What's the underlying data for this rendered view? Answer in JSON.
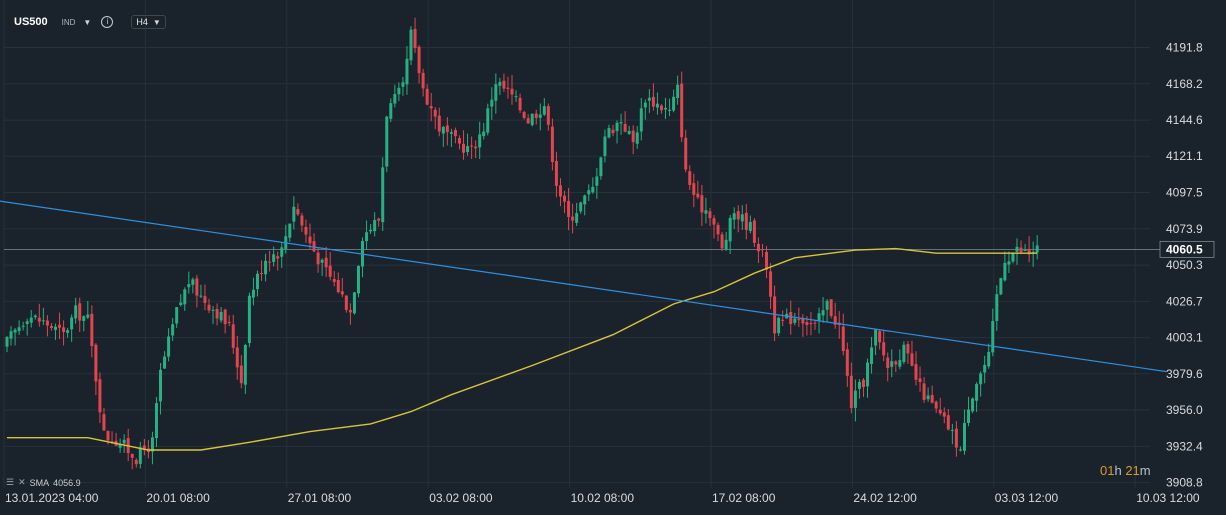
{
  "toolbar": {
    "symbol": "US500",
    "type": "IND",
    "timeframe": "H4",
    "info_icon": "info-icon",
    "dropdown_icon": "chevron-down-icon"
  },
  "indicator_legend": {
    "name": "SMA",
    "value": "4056.9"
  },
  "countdown": {
    "hours": "01",
    "h_unit": "h",
    "minutes": "21",
    "m_unit": "m"
  },
  "colors": {
    "background": "#1a232b",
    "up": "#26b083",
    "down": "#e2454f",
    "sma": "#d6c43a",
    "trendline": "#2f8fe0",
    "current_price_line": "#7c8c99",
    "countdown": "#d79a2e"
  },
  "chart_data": {
    "type": "candlestick",
    "title": "US500",
    "timeframe": "H4",
    "y_axis": {
      "ticks": [
        "4191.8",
        "4168.2",
        "4144.6",
        "4121.1",
        "4097.5",
        "4073.9",
        "4050.3",
        "4026.7",
        "4003.1",
        "3979.6",
        "3956.0",
        "3932.4",
        "3908.8"
      ],
      "ylim": [
        3905,
        4225
      ]
    },
    "x_axis": {
      "ticks": [
        "13.01.2023 04:00",
        "20.01 08:00",
        "27.01 08:00",
        "03.02 08:00",
        "10.02 08:00",
        "17.02 08:00",
        "24.02 12:00",
        "03.03 12:00",
        "10.03 12:00"
      ],
      "tick_bar_index": [
        0,
        35,
        70,
        105,
        140,
        175,
        210,
        245,
        280
      ]
    },
    "current_price": "4060.5",
    "grid": true,
    "close_path": [
      [
        0,
        4000
      ],
      [
        5,
        4018
      ],
      [
        10,
        4012
      ],
      [
        14,
        4005
      ],
      [
        17,
        4020
      ],
      [
        20,
        4015
      ],
      [
        24,
        3940
      ],
      [
        28,
        3935
      ],
      [
        32,
        3925
      ],
      [
        36,
        3935
      ],
      [
        38,
        3980
      ],
      [
        42,
        4020
      ],
      [
        45,
        4040
      ],
      [
        48,
        4030
      ],
      [
        52,
        4020
      ],
      [
        55,
        4010
      ],
      [
        58,
        3975
      ],
      [
        60,
        4030
      ],
      [
        64,
        4055
      ],
      [
        68,
        4060
      ],
      [
        71,
        4090
      ],
      [
        74,
        4070
      ],
      [
        78,
        4050
      ],
      [
        82,
        4035
      ],
      [
        85,
        4020
      ],
      [
        88,
        4070
      ],
      [
        92,
        4080
      ],
      [
        94,
        4150
      ],
      [
        98,
        4165
      ],
      [
        100,
        4200
      ],
      [
        103,
        4165
      ],
      [
        107,
        4140
      ],
      [
        111,
        4130
      ],
      [
        115,
        4125
      ],
      [
        118,
        4140
      ],
      [
        121,
        4170
      ],
      [
        125,
        4160
      ],
      [
        129,
        4145
      ],
      [
        133,
        4155
      ],
      [
        136,
        4105
      ],
      [
        139,
        4080
      ],
      [
        142,
        4090
      ],
      [
        145,
        4100
      ],
      [
        148,
        4135
      ],
      [
        152,
        4145
      ],
      [
        155,
        4130
      ],
      [
        158,
        4160
      ],
      [
        161,
        4155
      ],
      [
        164,
        4150
      ],
      [
        166,
        4165
      ],
      [
        168,
        4110
      ],
      [
        171,
        4090
      ],
      [
        174,
        4085
      ],
      [
        177,
        4060
      ],
      [
        180,
        4085
      ],
      [
        184,
        4075
      ],
      [
        188,
        4050
      ],
      [
        190,
        4010
      ],
      [
        193,
        4015
      ],
      [
        196,
        4018
      ],
      [
        200,
        4010
      ],
      [
        203,
        4025
      ],
      [
        206,
        4010
      ],
      [
        209,
        3960
      ],
      [
        212,
        3975
      ],
      [
        215,
        4005
      ],
      [
        218,
        3985
      ],
      [
        222,
        3995
      ],
      [
        226,
        3970
      ],
      [
        230,
        3955
      ],
      [
        233,
        3945
      ],
      [
        236,
        3930
      ],
      [
        238,
        3960
      ],
      [
        240,
        3975
      ],
      [
        243,
        3990
      ],
      [
        245,
        4030
      ],
      [
        247,
        4055
      ],
      [
        250,
        4060
      ],
      [
        253,
        4058
      ],
      [
        255,
        4061
      ]
    ],
    "sma": {
      "name": "SMA",
      "value": 4056.9,
      "path": [
        [
          0,
          3938
        ],
        [
          20,
          3938
        ],
        [
          35,
          3930
        ],
        [
          48,
          3930
        ],
        [
          60,
          3935
        ],
        [
          75,
          3942
        ],
        [
          90,
          3947
        ],
        [
          100,
          3955
        ],
        [
          110,
          3966
        ],
        [
          130,
          3985
        ],
        [
          150,
          4005
        ],
        [
          165,
          4025
        ],
        [
          175,
          4033
        ],
        [
          185,
          4045
        ],
        [
          195,
          4055
        ],
        [
          210,
          4060
        ],
        [
          220,
          4061
        ],
        [
          230,
          4058
        ],
        [
          240,
          4058
        ],
        [
          255,
          4058
        ]
      ]
    },
    "trendline": {
      "points": [
        [
          -6,
          4093.5
        ],
        [
          287,
          3981
        ]
      ]
    }
  }
}
